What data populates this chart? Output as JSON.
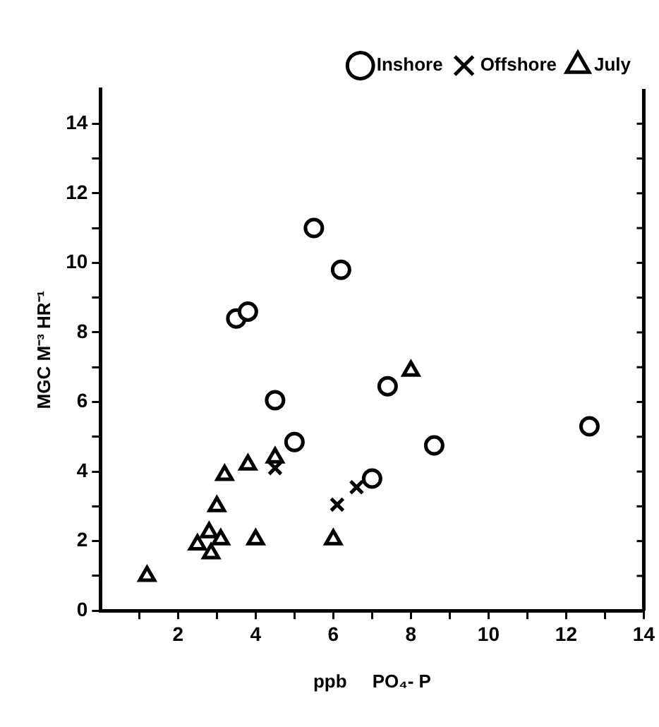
{
  "chart_data": {
    "type": "scatter",
    "xlabel": "ppb     PO₄- P",
    "ylabel": "MGC M⁻³ HR⁻¹",
    "xlim": [
      0,
      14
    ],
    "ylim": [
      0,
      15
    ],
    "xticks": [
      {
        "value": 1,
        "label": null
      },
      2,
      {
        "value": 3,
        "label": null
      },
      4,
      {
        "value": 5,
        "label": null
      },
      6,
      {
        "value": 7,
        "label": null
      },
      8,
      {
        "value": 9,
        "label": null
      },
      10,
      {
        "value": 11,
        "label": null
      },
      12,
      {
        "value": 13,
        "label": null
      },
      14
    ],
    "yticks": [
      0,
      {
        "value": 1,
        "label": null
      },
      2,
      {
        "value": 3,
        "label": null
      },
      4,
      {
        "value": 5,
        "label": null
      },
      6,
      {
        "value": 7,
        "label": null
      },
      8,
      {
        "value": 9,
        "label": null
      },
      10,
      {
        "value": 11,
        "label": null
      },
      12,
      {
        "value": 13,
        "label": null
      },
      14
    ],
    "grid": false,
    "legend": "top right",
    "series": [
      {
        "name": "Inshore",
        "color": "#000000",
        "marker": "circle",
        "x": [
          5.5,
          6.2,
          3.5,
          3.8,
          4.5,
          5.0,
          7.4,
          8.6,
          7.0,
          12.6
        ],
        "values": [
          11.0,
          9.8,
          8.4,
          8.6,
          6.05,
          4.85,
          6.45,
          4.75,
          3.8,
          5.3
        ]
      },
      {
        "name": "Offshore",
        "color": "#000000",
        "marker": "cross",
        "x": [
          4.5,
          6.1,
          6.6
        ],
        "values": [
          4.1,
          3.05,
          3.55
        ]
      },
      {
        "name": "July",
        "color": "#000000",
        "marker": "triangle",
        "x": [
          1.2,
          2.5,
          2.8,
          2.85,
          3.1,
          3.0,
          3.2,
          3.8,
          4.0,
          4.5,
          6.0,
          8.0
        ],
        "values": [
          1.0,
          1.9,
          2.25,
          1.65,
          2.05,
          3.0,
          3.9,
          4.2,
          2.05,
          4.4,
          2.05,
          6.9
        ]
      }
    ]
  }
}
